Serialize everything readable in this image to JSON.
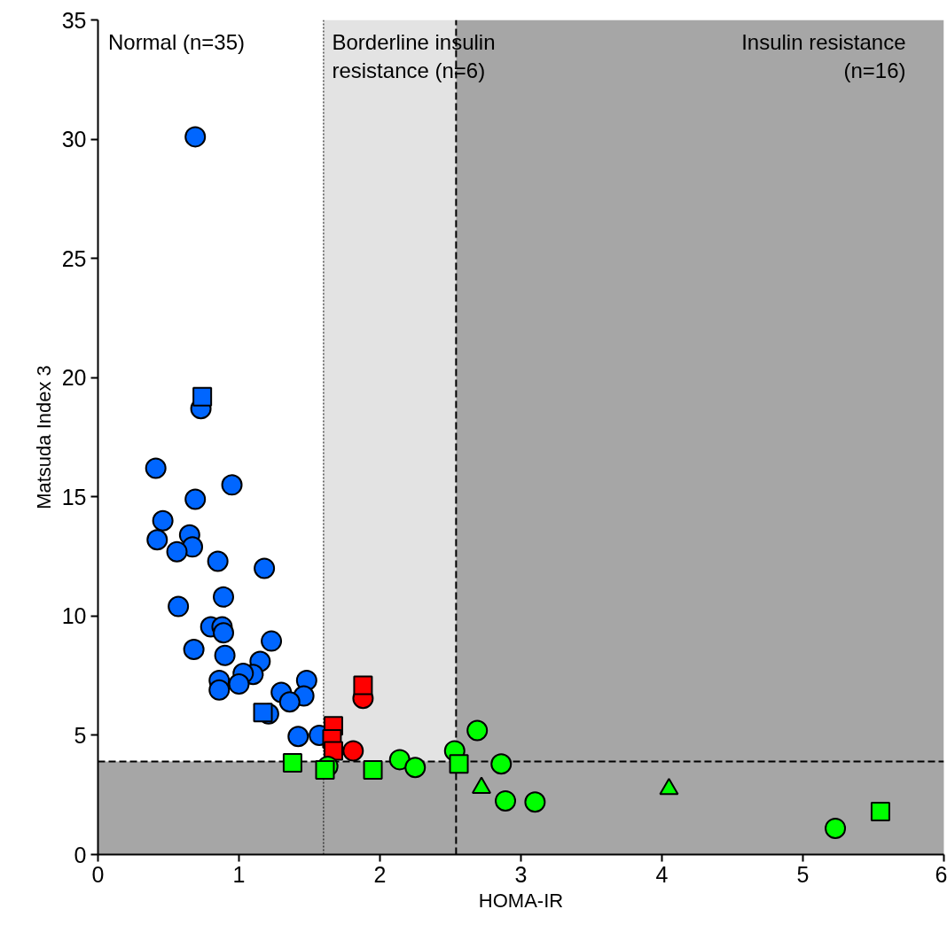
{
  "chart_data": {
    "type": "scatter",
    "xlabel": "HOMA-IR",
    "ylabel": "Matsuda Index 3",
    "xlim": [
      0,
      6
    ],
    "xticks": [
      0,
      1,
      2,
      3,
      4,
      5,
      6
    ],
    "ylim": [
      0,
      35
    ],
    "yticks": [
      0,
      5,
      10,
      15,
      20,
      25,
      30,
      35
    ],
    "grid": false,
    "annotations": [
      "Normal (n=35)"
    ],
    "bands": [
      {
        "axis": "x",
        "from": 1.6,
        "to": 2.54,
        "label": "Borderline insulin\nresistance (n=6)",
        "color": "#e3e3e3"
      },
      {
        "axis": "x",
        "from": 2.54,
        "to": 6,
        "label": "Insulin resistance\n(n=16)",
        "color": "#a6a6a6"
      },
      {
        "axis": "y",
        "from": 0,
        "to": 3.9,
        "color": "#a6a6a6"
      }
    ],
    "ref_lines": [
      {
        "axis": "x",
        "value": 1.6,
        "line_style": "dotted"
      },
      {
        "axis": "x",
        "value": 2.54,
        "line_style": "dashed"
      },
      {
        "axis": "y",
        "value": 3.9,
        "line_style": "dashed"
      }
    ],
    "series": [
      {
        "color": "#0066ff",
        "marker": "circle",
        "x": [
          0.69,
          0.73,
          0.41,
          0.95,
          0.46,
          0.69,
          0.42,
          0.65,
          0.67,
          0.56,
          0.85,
          1.18,
          0.89,
          0.57,
          0.8,
          0.88,
          0.89,
          1.23,
          0.68,
          0.9,
          1.15,
          1.48,
          1.1,
          1.03,
          1.0,
          0.86,
          0.86,
          1.3,
          1.46,
          1.36,
          1.21,
          1.42,
          1.57
        ],
        "values": [
          30.1,
          18.7,
          16.2,
          15.5,
          14.0,
          14.9,
          13.2,
          13.4,
          12.9,
          12.7,
          12.3,
          12.0,
          10.8,
          10.4,
          9.55,
          9.55,
          9.3,
          8.95,
          8.6,
          8.35,
          8.1,
          7.3,
          7.55,
          7.6,
          7.15,
          7.3,
          6.9,
          6.8,
          6.65,
          6.4,
          5.9,
          4.95,
          5.0
        ]
      },
      {
        "color": "#0066ff",
        "marker": "square",
        "x": [
          0.74,
          1.17
        ],
        "values": [
          19.2,
          5.95
        ]
      },
      {
        "color": "#ff0000",
        "marker": "circle",
        "x": [
          1.88,
          1.81
        ],
        "values": [
          6.55,
          4.35
        ]
      },
      {
        "color": "#ff0000",
        "marker": "square",
        "x": [
          1.88,
          1.67,
          1.66,
          1.67
        ],
        "values": [
          7.1,
          5.4,
          4.85,
          4.35
        ]
      },
      {
        "color": "#00ff00",
        "marker": "circle",
        "x": [
          1.63,
          2.14,
          2.25,
          2.53,
          2.69,
          2.86,
          2.89,
          3.1,
          5.23
        ],
        "values": [
          3.7,
          3.98,
          3.65,
          4.35,
          5.2,
          3.8,
          2.25,
          2.2,
          1.1
        ]
      },
      {
        "color": "#00ff00",
        "marker": "square",
        "x": [
          1.38,
          1.61,
          1.95,
          2.56,
          5.55
        ],
        "values": [
          3.85,
          3.55,
          3.55,
          3.8,
          1.8
        ]
      },
      {
        "color": "#00ff00",
        "marker": "triangle",
        "x": [
          2.72,
          4.05
        ],
        "values": [
          2.8,
          2.75
        ]
      }
    ]
  }
}
